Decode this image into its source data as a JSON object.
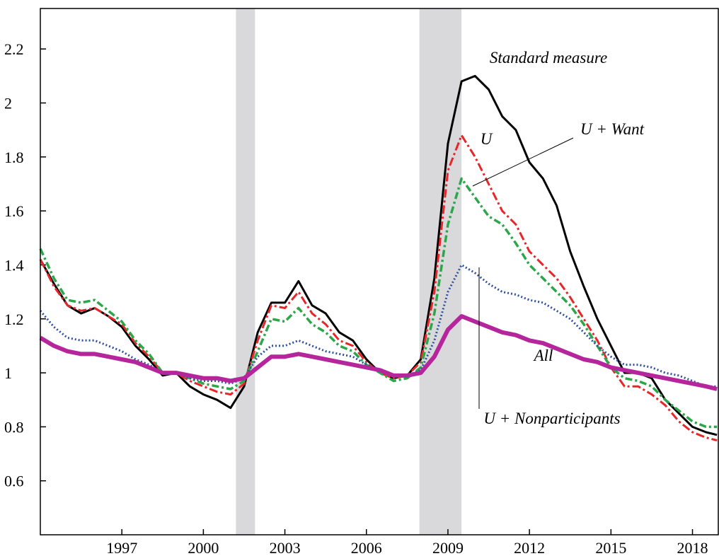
{
  "chart_data": {
    "type": "line",
    "x": [
      1994,
      1994.5,
      1995,
      1995.5,
      1996,
      1996.5,
      1997,
      1997.5,
      1998,
      1998.5,
      1999,
      1999.5,
      2000,
      2000.5,
      2001,
      2001.5,
      2002,
      2002.5,
      2003,
      2003.5,
      2004,
      2004.5,
      2005,
      2005.5,
      2006,
      2006.5,
      2007,
      2007.5,
      2008,
      2008.5,
      2009,
      2009.5,
      2010,
      2010.5,
      2011,
      2011.5,
      2012,
      2012.5,
      2013,
      2013.5,
      2014,
      2014.5,
      2015,
      2015.5,
      2016,
      2016.5,
      2017,
      2017.5,
      2018,
      2018.5,
      2018.9
    ],
    "series": [
      {
        "name": "Standard measure",
        "color": "#000000",
        "values": [
          1.42,
          1.33,
          1.25,
          1.22,
          1.24,
          1.21,
          1.17,
          1.1,
          1.05,
          0.99,
          1.0,
          0.95,
          0.92,
          0.9,
          0.87,
          0.95,
          1.15,
          1.26,
          1.26,
          1.34,
          1.25,
          1.22,
          1.15,
          1.12,
          1.05,
          1.0,
          0.98,
          0.99,
          1.05,
          1.35,
          1.85,
          2.08,
          2.1,
          2.05,
          1.95,
          1.9,
          1.78,
          1.72,
          1.62,
          1.45,
          1.32,
          1.2,
          1.1,
          1.0,
          1.0,
          0.98,
          0.9,
          0.85,
          0.8,
          0.78,
          0.77
        ]
      },
      {
        "name": "U",
        "color": "#e8262a",
        "values": [
          1.42,
          1.32,
          1.25,
          1.23,
          1.24,
          1.21,
          1.18,
          1.11,
          1.06,
          1.0,
          1.0,
          0.97,
          0.95,
          0.93,
          0.92,
          0.96,
          1.12,
          1.25,
          1.24,
          1.3,
          1.22,
          1.18,
          1.12,
          1.1,
          1.04,
          1.0,
          0.98,
          0.99,
          1.04,
          1.3,
          1.75,
          1.88,
          1.8,
          1.7,
          1.6,
          1.55,
          1.45,
          1.4,
          1.35,
          1.28,
          1.2,
          1.12,
          1.02,
          0.95,
          0.95,
          0.92,
          0.88,
          0.82,
          0.78,
          0.76,
          0.75
        ]
      },
      {
        "name": "U + Want",
        "color": "#2ca64a",
        "values": [
          1.46,
          1.35,
          1.27,
          1.26,
          1.27,
          1.23,
          1.19,
          1.12,
          1.07,
          1.0,
          1.0,
          0.98,
          0.96,
          0.95,
          0.94,
          0.97,
          1.08,
          1.2,
          1.19,
          1.24,
          1.18,
          1.15,
          1.1,
          1.08,
          1.03,
          1.0,
          0.97,
          0.98,
          1.02,
          1.22,
          1.55,
          1.72,
          1.65,
          1.58,
          1.55,
          1.48,
          1.4,
          1.35,
          1.3,
          1.25,
          1.18,
          1.1,
          1.02,
          0.98,
          0.97,
          0.95,
          0.9,
          0.86,
          0.82,
          0.8,
          0.8
        ]
      },
      {
        "name": "U + Nonparticipants",
        "color": "#2f50a0",
        "values": [
          1.23,
          1.17,
          1.13,
          1.12,
          1.12,
          1.1,
          1.08,
          1.05,
          1.03,
          1.0,
          1.0,
          0.98,
          0.97,
          0.97,
          0.96,
          0.98,
          1.06,
          1.1,
          1.1,
          1.12,
          1.1,
          1.08,
          1.07,
          1.06,
          1.03,
          1.01,
          0.99,
          0.99,
          1.01,
          1.12,
          1.3,
          1.4,
          1.37,
          1.33,
          1.3,
          1.29,
          1.27,
          1.26,
          1.23,
          1.2,
          1.15,
          1.1,
          1.06,
          1.03,
          1.03,
          1.02,
          1.0,
          0.99,
          0.97,
          0.95,
          0.95
        ]
      },
      {
        "name": "All",
        "color": "#b5259b",
        "values": [
          1.13,
          1.1,
          1.08,
          1.07,
          1.07,
          1.06,
          1.05,
          1.04,
          1.02,
          1.0,
          1.0,
          0.99,
          0.98,
          0.98,
          0.97,
          0.98,
          1.02,
          1.06,
          1.06,
          1.07,
          1.06,
          1.05,
          1.04,
          1.03,
          1.02,
          1.01,
          0.99,
          0.99,
          1.0,
          1.06,
          1.16,
          1.21,
          1.19,
          1.17,
          1.15,
          1.14,
          1.12,
          1.11,
          1.09,
          1.07,
          1.05,
          1.04,
          1.02,
          1.01,
          1.0,
          0.99,
          0.98,
          0.97,
          0.96,
          0.95,
          0.94
        ]
      }
    ],
    "shaded_regions": [
      [
        2001.2,
        2001.9
      ],
      [
        2007.95,
        2009.5
      ]
    ],
    "shade_color": "#d9d9db",
    "xlim": [
      1994,
      2018.95
    ],
    "ylim": [
      0.4,
      2.35
    ],
    "xticks": [
      1997,
      2000,
      2003,
      2006,
      2009,
      2012,
      2015,
      2018
    ],
    "yticks": [
      0.6,
      0.8,
      1,
      1.2,
      1.4,
      1.6,
      1.8,
      2,
      2.2
    ]
  }
}
